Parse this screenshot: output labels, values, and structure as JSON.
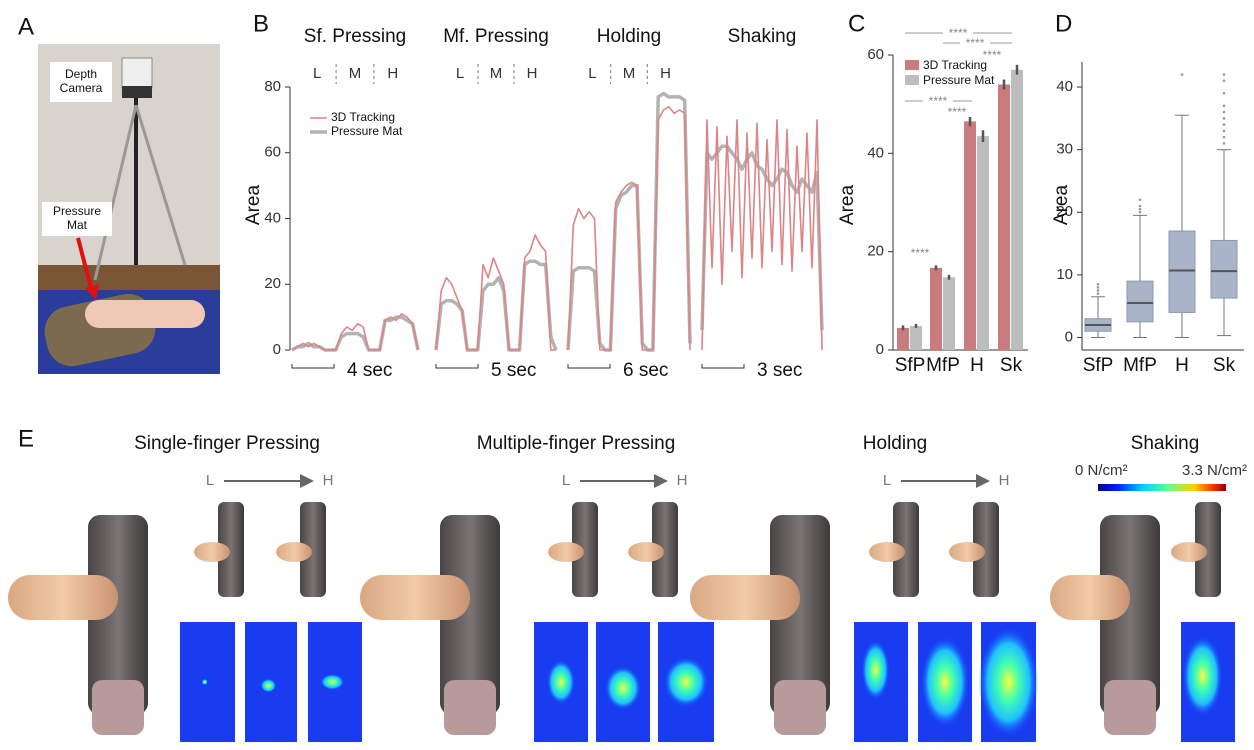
{
  "panel_labels": [
    "A",
    "B",
    "C",
    "D",
    "E"
  ],
  "photo_labels": [
    "Depth Camera",
    "Pressure Mat"
  ],
  "chart_data": [
    {
      "type": "line",
      "ylabel": "Area",
      "ylim": [
        0,
        80
      ],
      "yticks": [
        0,
        20,
        40,
        60,
        80
      ],
      "legend": [
        {
          "name": "3D Tracking",
          "color": "#dc8486"
        },
        {
          "name": "Pressure Mat",
          "color": "#b3b3b3"
        }
      ],
      "panels": [
        {
          "title": "Sf. Pressing",
          "levels": [
            "L",
            "M",
            "H"
          ],
          "time_label": "4 sec",
          "series": [
            {
              "values": [
                0,
                1,
                2,
                1,
                2,
                1,
                0,
                0,
                0,
                5,
                7,
                6,
                8,
                7,
                0,
                0,
                0,
                9,
                10,
                9,
                11,
                10,
                8,
                0
              ]
            },
            {
              "values": [
                0,
                1,
                1,
                2,
                1,
                1,
                0,
                0,
                0,
                4,
                5,
                5,
                5,
                4,
                0,
                0,
                0,
                9,
                9,
                10,
                10,
                9,
                8,
                0
              ]
            }
          ]
        },
        {
          "title": "Mf. Pressing",
          "levels": [
            "L",
            "M",
            "H"
          ],
          "time_label": "5 sec",
          "series": [
            {
              "values": [
                0,
                18,
                22,
                20,
                16,
                12,
                0,
                0,
                0,
                26,
                22,
                28,
                24,
                20,
                0,
                0,
                0,
                28,
                30,
                35,
                32,
                30,
                0,
                0
              ]
            },
            {
              "values": [
                0,
                14,
                15,
                15,
                14,
                12,
                0,
                0,
                0,
                18,
                20,
                20,
                22,
                18,
                0,
                0,
                0,
                26,
                27,
                27,
                26,
                26,
                4,
                0
              ]
            }
          ]
        },
        {
          "title": "Holding",
          "levels": [
            "L",
            "M",
            "H"
          ],
          "time_label": "6 sec",
          "series": [
            {
              "values": [
                0,
                38,
                43,
                40,
                42,
                40,
                0,
                0,
                0,
                45,
                48,
                50,
                51,
                50,
                0,
                0,
                0,
                70,
                73,
                74,
                72,
                73,
                72,
                0
              ]
            },
            {
              "values": [
                0,
                24,
                25,
                25,
                25,
                24,
                2,
                0,
                0,
                43,
                47,
                48,
                50,
                50,
                2,
                0,
                0,
                77,
                78,
                77,
                77,
                77,
                76,
                2
              ]
            }
          ]
        },
        {
          "title": "Shaking",
          "time_label": "3 sec",
          "series": [
            {
              "values": [
                0,
                70,
                25,
                68,
                20,
                65,
                30,
                70,
                22,
                66,
                28,
                69,
                25,
                64,
                30,
                70,
                26,
                67,
                24,
                62,
                30,
                66,
                25,
                70,
                0
              ]
            },
            {
              "values": [
                6,
                60,
                58,
                60,
                62,
                62,
                60,
                58,
                55,
                58,
                60,
                56,
                55,
                52,
                50,
                52,
                55,
                54,
                50,
                48,
                52,
                50,
                48,
                54,
                6
              ]
            }
          ]
        }
      ]
    },
    {
      "type": "bar",
      "ylabel": "Area",
      "categories": [
        "SfP",
        "MfP",
        "H",
        "Sk"
      ],
      "ylim": [
        0,
        60
      ],
      "yticks": [
        0,
        20,
        40,
        60
      ],
      "series": [
        {
          "name": "3D Tracking",
          "color": "#c97b7d",
          "values": [
            4.5,
            16.7,
            46.5,
            54
          ],
          "errors": [
            0.5,
            0.5,
            1,
            1
          ]
        },
        {
          "name": "Pressure Mat",
          "color": "#bdbdbd",
          "values": [
            4.9,
            14.8,
            43.5,
            57
          ],
          "errors": [
            0.4,
            0.5,
            1.2,
            1
          ]
        }
      ],
      "annotations": [
        "****",
        "****",
        "****",
        "****",
        "****",
        "****"
      ]
    },
    {
      "type": "box",
      "ylabel": "Area",
      "categories": [
        "SfP",
        "MfP",
        "H",
        "Sk"
      ],
      "ylim": [
        -2,
        44
      ],
      "yticks": [
        0,
        10,
        20,
        30,
        40
      ],
      "color": "#a9b4c8",
      "boxes": [
        {
          "whislo": 0,
          "q1": 1,
          "med": 2,
          "q3": 3,
          "whishi": 6.5,
          "outliers": [
            7,
            7.5,
            8,
            8.5
          ]
        },
        {
          "whislo": 0,
          "q1": 2.5,
          "med": 5.5,
          "q3": 9,
          "whishi": 19.5,
          "outliers": [
            20,
            20.5,
            21,
            22
          ]
        },
        {
          "whislo": 0,
          "q1": 4,
          "med": 10.7,
          "q3": 17,
          "whishi": 35.5,
          "outliers": [
            42
          ]
        },
        {
          "whislo": 0.3,
          "q1": 6.3,
          "med": 10.6,
          "q3": 15.5,
          "whishi": 30,
          "outliers": [
            31,
            32,
            33,
            34,
            35,
            36,
            37,
            39,
            41,
            42
          ]
        }
      ]
    }
  ],
  "panel_e": {
    "titles": [
      "Single-finger Pressing",
      "Multiple-finger Pressing",
      "Holding",
      "Shaking"
    ],
    "levels": [
      "L",
      "H"
    ],
    "colorbar_labels": [
      "0 N/cm²",
      "3.3 N/cm²"
    ]
  }
}
